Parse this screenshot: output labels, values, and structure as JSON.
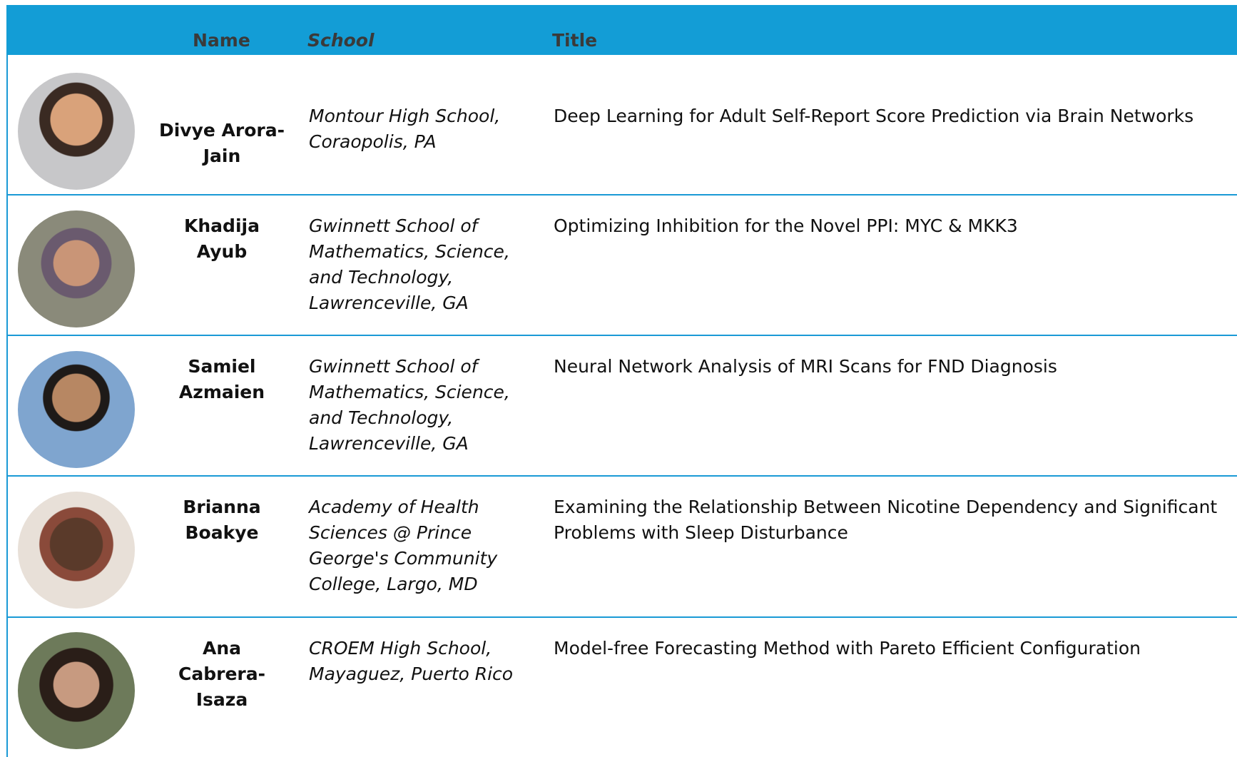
{
  "header": {
    "name": "Name",
    "school": "School",
    "title": "Title"
  },
  "rows": [
    {
      "name": "Divye Arora-Jain",
      "school": "Montour High School, Coraopolis, PA",
      "title": "Deep Learning for Adult Self-Report Score Prediction via Brain Networks"
    },
    {
      "name": "Khadija Ayub",
      "school": "Gwinnett School of Mathematics, Science, and Technology, Lawrenceville, GA",
      "title": "Optimizing Inhibition for the Novel PPI: MYC & MKK3"
    },
    {
      "name": "Samiel Azmaien",
      "school": "Gwinnett School of Mathematics, Science, and Technology, Lawrenceville, GA",
      "title": "Neural Network Analysis of MRI Scans for FND Diagnosis"
    },
    {
      "name": "Brianna Boakye",
      "school": "Academy of Health Sciences @ Prince George's Community College, Largo, MD",
      "title": "Examining the Relationship Between Nicotine Dependency and Significant Problems with Sleep Disturbance"
    },
    {
      "name": "Ana Cabrera-Isaza",
      "school": "CROEM High School, Mayaguez, Puerto Rico",
      "title": "Model-free Forecasting Method with Pareto Efficient Configuration"
    }
  ]
}
